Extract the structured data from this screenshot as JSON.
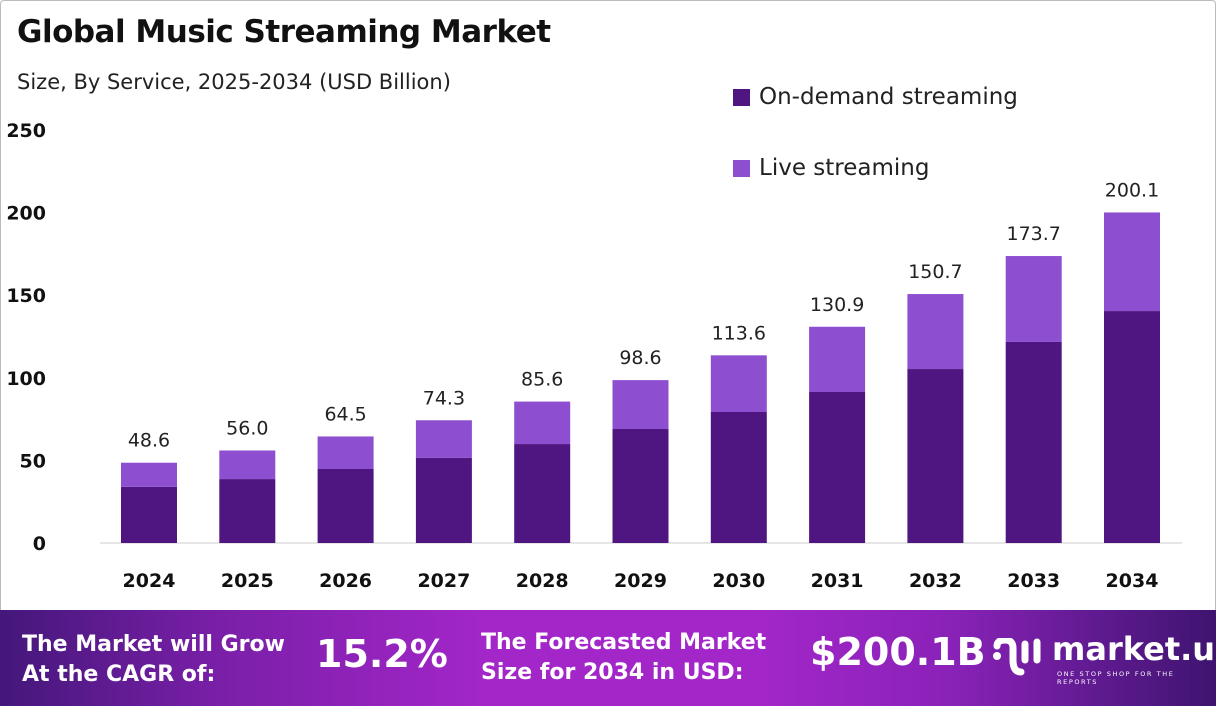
{
  "chart_data": {
    "type": "bar",
    "stacked": true,
    "title": "Global Music Streaming Market",
    "subtitle": "Size, By Service, 2025-2034 (USD Billion)",
    "xlabel": "",
    "ylabel": "",
    "ylim": [
      0,
      250
    ],
    "yticks": [
      "0",
      "50",
      "100",
      "150",
      "200",
      "250"
    ],
    "categories": [
      "2024",
      "2025",
      "2026",
      "2027",
      "2028",
      "2029",
      "2030",
      "2031",
      "2032",
      "2033",
      "2034"
    ],
    "series": [
      {
        "name": "On-demand streaming",
        "color": "#4f1681",
        "values": [
          34.0,
          38.7,
          44.8,
          51.5,
          59.9,
          69.0,
          79.3,
          91.4,
          105.3,
          121.7,
          140.4
        ]
      },
      {
        "name": "Live streaming",
        "color": "#8d4fd0",
        "values": [
          14.6,
          17.3,
          19.7,
          22.8,
          25.7,
          29.6,
          34.3,
          39.5,
          45.4,
          52.0,
          59.7
        ]
      }
    ],
    "totals": [
      "48.6",
      "56.0",
      "64.5",
      "74.3",
      "85.6",
      "98.6",
      "113.6",
      "130.9",
      "150.7",
      "173.7",
      "200.1"
    ],
    "legend_position": "top-right",
    "grid": false
  },
  "banner": {
    "cagr_text_1": "The Market will Grow",
    "cagr_text_2": "At the CAGR of:",
    "cagr_value": "15.2%",
    "forecast_text_1": "The Forecasted Market",
    "forecast_text_2": "Size for 2034 in USD:",
    "forecast_value": "$200.1B",
    "logo_name": "market.us",
    "logo_tagline": "ONE STOP SHOP FOR THE REPORTS"
  }
}
